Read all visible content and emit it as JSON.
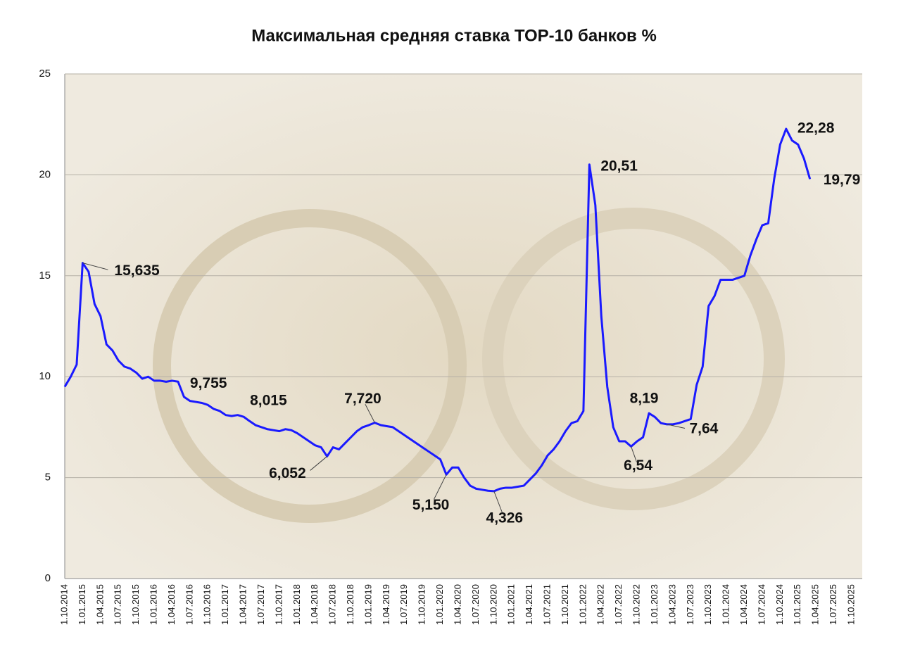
{
  "chart_data": {
    "type": "line",
    "title": "Максимальная средняя ставка ТОР-10 банков %",
    "xticks": [
      "1.10.2014",
      "1.01.2015",
      "1.04.2015",
      "1.07.2015",
      "1.10.2015",
      "1.01.2016",
      "1.04.2016",
      "1.07.2016",
      "1.10.2016",
      "1.01.2017",
      "1.04.2017",
      "1.07.2017",
      "1.10.2017",
      "1.01.2018",
      "1.04.2018",
      "1.07.2018",
      "1.10.2018",
      "1.01.2019",
      "1.04.2019",
      "1.07.2019",
      "1.10.2019",
      "1.01.2020",
      "1.04.2020",
      "1.07.2020",
      "1.10.2020",
      "1.01.2021",
      "1.04.2021",
      "1.07.2021",
      "1.10.2021",
      "1.01.2022",
      "1.04.2022",
      "1.07.2022",
      "1.10.2022",
      "1.01.2023",
      "1.04.2023",
      "1.07.2023",
      "1.10.2023",
      "1.01.2024",
      "1.04.2024",
      "1.07.2024",
      "1.10.2024",
      "1.01.2025",
      "1.04.2025",
      "1.07.2025",
      "1.10.2025"
    ],
    "x": [
      "1.10.2014",
      "1.11.2014",
      "1.12.2014",
      "1.01.2015",
      "1.02.2015",
      "1.03.2015",
      "1.04.2015",
      "1.05.2015",
      "1.06.2015",
      "1.07.2015",
      "1.08.2015",
      "1.09.2015",
      "1.10.2015",
      "1.11.2015",
      "1.12.2015",
      "1.01.2016",
      "1.02.2016",
      "1.03.2016",
      "1.04.2016",
      "1.05.2016",
      "1.06.2016",
      "1.07.2016",
      "1.08.2016",
      "1.09.2016",
      "1.10.2016",
      "1.11.2016",
      "1.12.2016",
      "1.01.2017",
      "1.02.2017",
      "1.03.2017",
      "1.04.2017",
      "1.05.2017",
      "1.06.2017",
      "1.07.2017",
      "1.08.2017",
      "1.09.2017",
      "1.10.2017",
      "1.11.2017",
      "1.12.2017",
      "1.01.2018",
      "1.02.2018",
      "1.03.2018",
      "1.04.2018",
      "1.05.2018",
      "1.06.2018",
      "1.07.2018",
      "1.08.2018",
      "1.09.2018",
      "1.10.2018",
      "1.11.2018",
      "1.12.2018",
      "1.01.2019",
      "1.02.2019",
      "1.03.2019",
      "1.04.2019",
      "1.05.2019",
      "1.06.2019",
      "1.07.2019",
      "1.08.2019",
      "1.09.2019",
      "1.10.2019",
      "1.11.2019",
      "1.12.2019",
      "1.01.2020",
      "1.02.2020",
      "1.03.2020",
      "1.04.2020",
      "1.05.2020",
      "1.06.2020",
      "1.07.2020",
      "1.08.2020",
      "1.09.2020",
      "1.10.2020",
      "1.11.2020",
      "1.12.2020",
      "1.01.2021",
      "1.02.2021",
      "1.03.2021",
      "1.04.2021",
      "1.05.2021",
      "1.06.2021",
      "1.07.2021",
      "1.08.2021",
      "1.09.2021",
      "1.10.2021",
      "1.11.2021",
      "1.12.2021",
      "1.01.2022",
      "1.02.2022",
      "1.03.2022",
      "1.04.2022",
      "1.05.2022",
      "1.06.2022",
      "1.07.2022",
      "1.08.2022",
      "1.09.2022",
      "1.10.2022",
      "1.11.2022",
      "1.12.2022",
      "1.01.2023",
      "1.02.2023",
      "1.03.2023",
      "1.04.2023",
      "1.05.2023",
      "1.06.2023",
      "1.07.2023",
      "1.08.2023",
      "1.09.2023",
      "1.10.2023",
      "1.11.2023",
      "1.12.2023",
      "1.01.2024",
      "1.02.2024",
      "1.03.2024",
      "1.04.2024",
      "1.05.2024",
      "1.06.2024",
      "1.07.2024",
      "1.08.2024",
      "1.09.2024",
      "1.10.2024",
      "1.11.2024",
      "1.12.2024",
      "1.01.2025",
      "1.02.2025",
      "1.03.2025"
    ],
    "series": [
      {
        "color": "#1a1aff",
        "values": [
          9.5,
          10.0,
          10.6,
          15.635,
          15.2,
          13.6,
          13.0,
          11.6,
          11.3,
          10.8,
          10.5,
          10.4,
          10.2,
          9.9,
          10.0,
          9.8,
          9.8,
          9.75,
          9.8,
          9.755,
          9.0,
          8.8,
          8.75,
          8.7,
          8.6,
          8.4,
          8.3,
          8.1,
          8.05,
          8.1,
          8.015,
          7.8,
          7.6,
          7.5,
          7.4,
          7.35,
          7.3,
          7.4,
          7.35,
          7.2,
          7.0,
          6.8,
          6.6,
          6.5,
          6.052,
          6.5,
          6.4,
          6.7,
          7.0,
          7.3,
          7.5,
          7.6,
          7.72,
          7.6,
          7.55,
          7.5,
          7.3,
          7.1,
          6.9,
          6.7,
          6.5,
          6.3,
          6.1,
          5.9,
          5.15,
          5.5,
          5.5,
          5.0,
          4.6,
          4.45,
          4.4,
          4.35,
          4.326,
          4.45,
          4.5,
          4.5,
          4.55,
          4.6,
          4.9,
          5.2,
          5.6,
          6.1,
          6.4,
          6.8,
          7.3,
          7.7,
          7.8,
          8.3,
          20.51,
          18.5,
          13.0,
          9.5,
          7.5,
          6.8,
          6.8,
          6.54,
          6.8,
          7.0,
          8.19,
          8.0,
          7.7,
          7.64,
          7.64,
          7.7,
          7.8,
          7.9,
          9.6,
          10.5,
          13.5,
          14.0,
          14.8,
          14.8,
          14.8,
          14.9,
          15.0,
          16.0,
          16.8,
          17.5,
          17.6,
          19.8,
          21.5,
          22.28,
          21.7,
          21.5,
          20.8,
          19.79
        ],
        "value_labels": [
          null,
          null,
          null,
          "15,635",
          null,
          null,
          null,
          null,
          null,
          null,
          null,
          null,
          null,
          null,
          null,
          null,
          null,
          null,
          null,
          "9,755",
          null,
          null,
          null,
          null,
          null,
          null,
          null,
          null,
          null,
          null,
          "8,015",
          null,
          null,
          null,
          null,
          null,
          null,
          null,
          null,
          null,
          null,
          null,
          null,
          null,
          "6,052",
          null,
          null,
          null,
          null,
          null,
          null,
          null,
          "7,720",
          null,
          null,
          null,
          null,
          null,
          null,
          null,
          null,
          null,
          null,
          null,
          "5,150",
          null,
          null,
          null,
          null,
          null,
          null,
          null,
          "4,326",
          null,
          null,
          null,
          null,
          null,
          null,
          null,
          null,
          null,
          null,
          null,
          null,
          null,
          null,
          null,
          "20,51",
          null,
          null,
          null,
          null,
          null,
          null,
          "6,54",
          null,
          null,
          "8,19",
          null,
          null,
          "7,64",
          null,
          null,
          null,
          null,
          null,
          null,
          null,
          null,
          null,
          null,
          null,
          null,
          null,
          null,
          null,
          null,
          null,
          null,
          null,
          "22,28",
          null,
          null,
          null,
          "19,79"
        ]
      }
    ],
    "ylim": [
      0,
      25
    ],
    "yticks": [
      0,
      5,
      10,
      15,
      20,
      25
    ],
    "grid": true
  }
}
